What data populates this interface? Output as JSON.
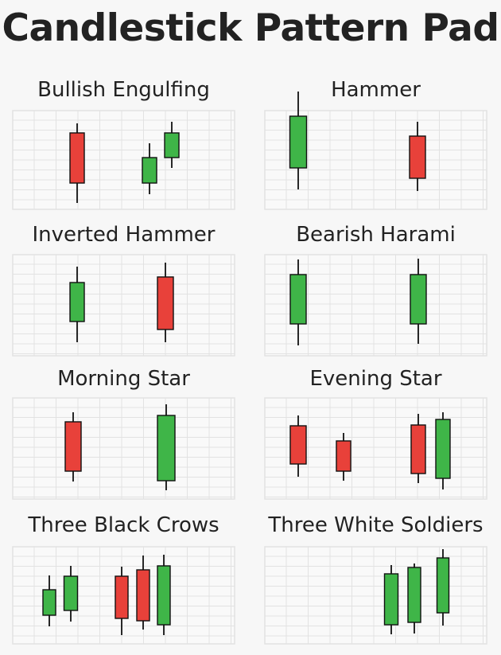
{
  "title": "Candlestick Pattern Pad",
  "colors": {
    "bullish": "#3fb548",
    "bearish": "#e8413a",
    "wick": "#111111",
    "grid": "#e2e2e2",
    "panel": "#f9f9f9"
  },
  "patterns": [
    {
      "name": "Bullish Engulfing",
      "candles": [
        "bearish",
        "bullish",
        "bullish"
      ]
    },
    {
      "name": "Hammer",
      "candles": [
        "bullish",
        "bearish"
      ]
    },
    {
      "name": "Inverted Hammer",
      "candles": [
        "bullish",
        "bearish"
      ]
    },
    {
      "name": "Bearish Harami",
      "candles": [
        "bullish",
        "bullish"
      ]
    },
    {
      "name": "Morning Star",
      "candles": [
        "bearish",
        "bullish"
      ]
    },
    {
      "name": "Evening Star",
      "candles": [
        "bearish",
        "bearish",
        "bearish",
        "bullish"
      ]
    },
    {
      "name": "Three Black Crows",
      "candles": [
        "bullish",
        "bullish",
        "bearish",
        "bearish",
        "bullish"
      ]
    },
    {
      "name": "Three White Soldiers",
      "candles": [
        "bullish",
        "bullish",
        "bullish"
      ]
    }
  ]
}
